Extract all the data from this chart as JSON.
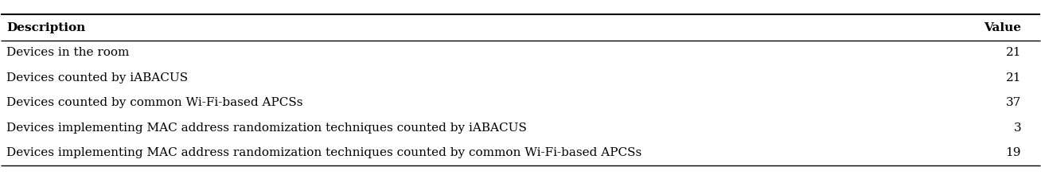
{
  "headers": [
    "Description",
    "Value"
  ],
  "rows": [
    [
      "Devices in the room",
      "21"
    ],
    [
      "Devices counted by iABACUS",
      "21"
    ],
    [
      "Devices counted by common Wi-Fi-based APCSs",
      "37"
    ],
    [
      "Devices implementing MAC address randomization techniques counted by iABACUS",
      "3"
    ],
    [
      "Devices implementing MAC address randomization techniques counted by common Wi-Fi-based APCSs",
      "19"
    ]
  ],
  "background_color": "#ffffff",
  "text_color": "#000000",
  "font_size": 11,
  "header_font_size": 11,
  "fig_width": 13.08,
  "fig_height": 2.2,
  "dpi": 100
}
